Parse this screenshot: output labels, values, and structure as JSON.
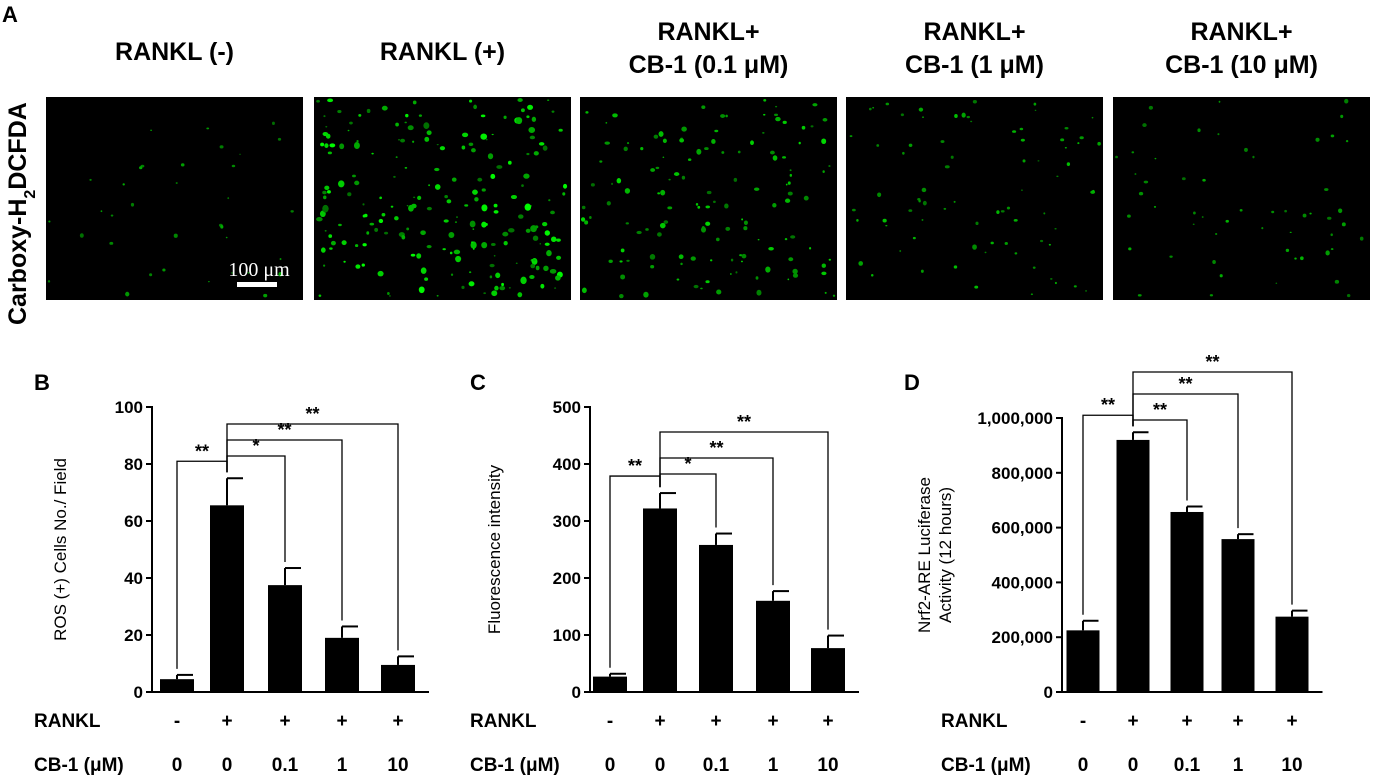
{
  "panel_a": {
    "letter": "A",
    "stain_label_prefix": "Carboxy-H",
    "stain_label_sub": "2",
    "stain_label_suffix": "DCFDA",
    "scale_bar_label": "100 μm",
    "images": [
      {
        "title_lines": [
          "RANKL  (-)"
        ],
        "density": 0.08
      },
      {
        "title_lines": [
          "RANKL  (+)"
        ],
        "density": 1.0
      },
      {
        "title_lines": [
          "RANKL+",
          "CB-1 (0.1 μM)"
        ],
        "density": 0.6
      },
      {
        "title_lines": [
          "RANKL+",
          "CB-1 (1 μM)"
        ],
        "density": 0.3
      },
      {
        "title_lines": [
          "RANKL+",
          "CB-1 (10 μM)"
        ],
        "density": 0.18
      }
    ]
  },
  "chart_data": [
    {
      "panel": "B",
      "type": "bar",
      "ylabel": "ROS (+) Cells No./ Field",
      "ylim": [
        0,
        100
      ],
      "yticks": [
        "0",
        "20",
        "40",
        "60",
        "80",
        "100"
      ],
      "categories": [
        "RANKL - / CB-1 0",
        "RANKL + / CB-1 0",
        "RANKL + / CB-1 0.1",
        "RANKL + / CB-1 1",
        "RANKL + / CB-1 10"
      ],
      "values": [
        4.5,
        65.5,
        37.5,
        19,
        9.5
      ],
      "errors": [
        1.5,
        9.5,
        6,
        4,
        3
      ],
      "row_labels": [
        "RANKL",
        "CB-1 (μM)"
      ],
      "rankl": [
        "-",
        "+",
        "+",
        "+",
        "+"
      ],
      "cb1": [
        "0",
        "0",
        "0.1",
        "1",
        "10"
      ],
      "comparisons": [
        {
          "from": 0,
          "to": 1,
          "label": "**"
        },
        {
          "from": 1,
          "to": 2,
          "label": "*"
        },
        {
          "from": 1,
          "to": 3,
          "label": "**"
        },
        {
          "from": 1,
          "to": 4,
          "label": "**"
        }
      ]
    },
    {
      "panel": "C",
      "type": "bar",
      "ylabel": "Fluorescence intensity",
      "ylim": [
        0,
        500
      ],
      "yticks": [
        "0",
        "100",
        "200",
        "300",
        "400",
        "500"
      ],
      "categories": [
        "RANKL - / CB-1 0",
        "RANKL + / CB-1 0",
        "RANKL + / CB-1 0.1",
        "RANKL + / CB-1 1",
        "RANKL + / CB-1 10"
      ],
      "values": [
        27,
        322,
        258,
        160,
        77
      ],
      "errors": [
        5,
        27,
        20,
        17,
        22
      ],
      "row_labels": [
        "RANKL",
        "CB-1 (μM)"
      ],
      "rankl": [
        "-",
        "+",
        "+",
        "+",
        "+"
      ],
      "cb1": [
        "0",
        "0",
        "0.1",
        "1",
        "10"
      ],
      "comparisons": [
        {
          "from": 0,
          "to": 1,
          "label": "**"
        },
        {
          "from": 1,
          "to": 2,
          "label": "*"
        },
        {
          "from": 1,
          "to": 3,
          "label": "**"
        },
        {
          "from": 1,
          "to": 4,
          "label": "**"
        }
      ]
    },
    {
      "panel": "D",
      "type": "bar",
      "ylabel_lines": [
        "Nrf2-ARE Luciferase",
        "Activity (12 hours)"
      ],
      "ylim": [
        0,
        1000000
      ],
      "yticks": [
        "0",
        "200,000",
        "400,000",
        "600,000",
        "800,000",
        "1,000,000"
      ],
      "categories": [
        "RANKL - / CB-1 0",
        "RANKL + / CB-1 0",
        "RANKL + / CB-1 0.1",
        "RANKL + / CB-1 1",
        "RANKL + / CB-1 10"
      ],
      "values": [
        225000,
        920000,
        657000,
        558000,
        275000
      ],
      "errors": [
        35000,
        28000,
        20000,
        18000,
        22000
      ],
      "row_labels": [
        "RANKL",
        "CB-1 (μM)"
      ],
      "rankl": [
        "-",
        "+",
        "+",
        "+",
        "+"
      ],
      "cb1": [
        "0",
        "0",
        "0.1",
        "1",
        "10"
      ],
      "comparisons": [
        {
          "from": 0,
          "to": 1,
          "label": "**"
        },
        {
          "from": 1,
          "to": 2,
          "label": "**"
        },
        {
          "from": 1,
          "to": 3,
          "label": "**"
        },
        {
          "from": 1,
          "to": 4,
          "label": "**"
        }
      ]
    }
  ]
}
